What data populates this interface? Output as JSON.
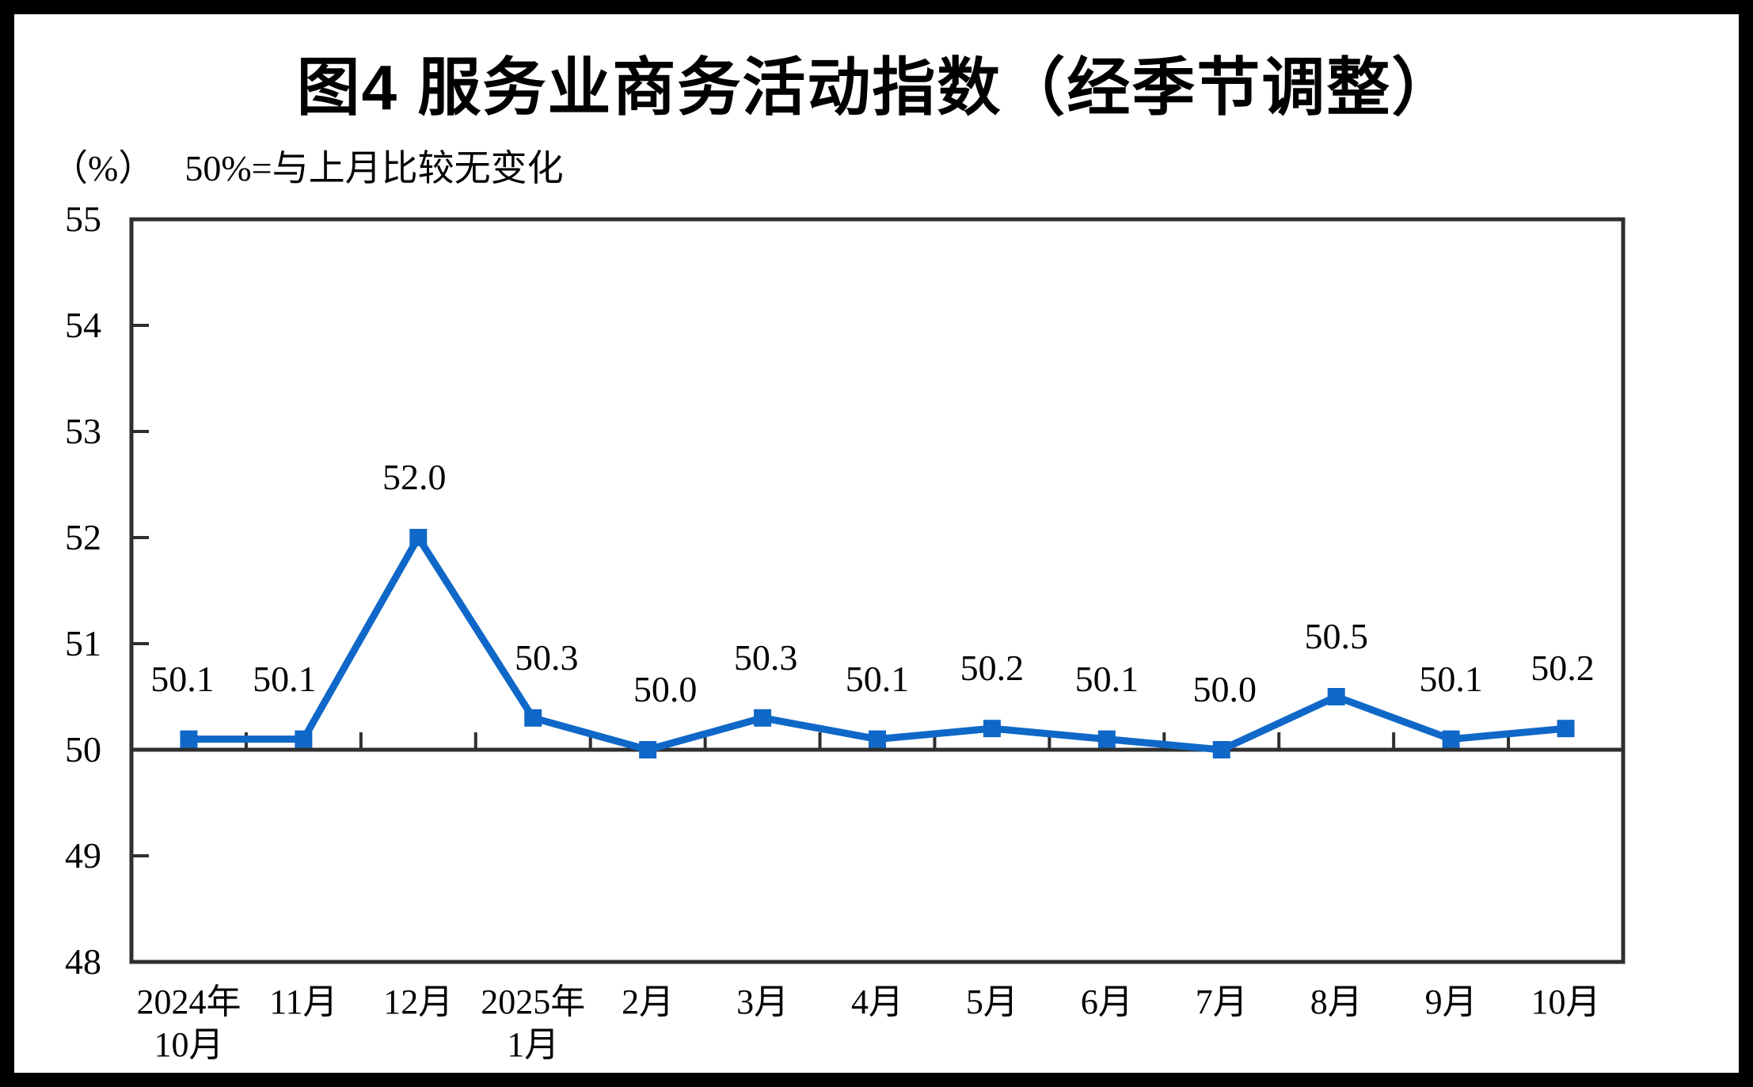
{
  "chart_data": {
    "type": "line",
    "title": "图4 服务业商务活动指数（经季节调整）",
    "unit_label": "（%）",
    "reference_note": "50%=与上月比较无变化",
    "categories": [
      [
        "2024年",
        "10月"
      ],
      [
        "11月"
      ],
      [
        "12月"
      ],
      [
        "2025年",
        "1月"
      ],
      [
        "2月"
      ],
      [
        "3月"
      ],
      [
        "4月"
      ],
      [
        "5月"
      ],
      [
        "6月"
      ],
      [
        "7月"
      ],
      [
        "8月"
      ],
      [
        "9月"
      ],
      [
        "10月"
      ]
    ],
    "series": [
      {
        "name": "服务业商务活动指数",
        "values": [
          50.1,
          50.1,
          52.0,
          50.3,
          50.0,
          50.3,
          50.1,
          50.2,
          50.1,
          50.0,
          50.5,
          50.1,
          50.2
        ],
        "data_labels": [
          "50.1",
          "50.1",
          "52.0",
          "50.3",
          "50.0",
          "50.3",
          "50.1",
          "50.2",
          "50.1",
          "50.0",
          "50.5",
          "50.1",
          "50.2"
        ]
      }
    ],
    "ylim": [
      48,
      55
    ],
    "yticks": [
      48,
      49,
      50,
      51,
      52,
      53,
      54,
      55
    ],
    "axis_crosses_at": 50,
    "grid": "off",
    "legend": "none",
    "marker": "square",
    "colors": {
      "line": "#0F68C8",
      "axis": "#2F2F2F",
      "text": "#000000",
      "background": "#FFFFFF",
      "outer_border": "#000000"
    }
  }
}
